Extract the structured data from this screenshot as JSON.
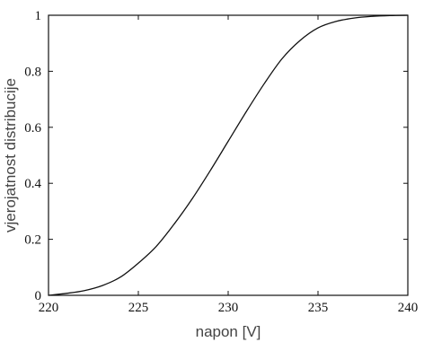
{
  "chart_data": {
    "type": "line",
    "title": "",
    "xlabel": "napon [V]",
    "ylabel": "vjerojatnost distribucije",
    "xlim": [
      220,
      240
    ],
    "ylim": [
      0,
      1
    ],
    "x_ticks": [
      220,
      225,
      230,
      235,
      240
    ],
    "x_tick_labels": [
      "220",
      "225",
      "230",
      "235",
      "240"
    ],
    "y_ticks": [
      0,
      0.2,
      0.4,
      0.6,
      0.8,
      1
    ],
    "y_tick_labels": [
      "0",
      "0.2",
      "0.4",
      "0.6",
      "0.8",
      "1"
    ],
    "grid": false,
    "legend": "none",
    "series": [
      {
        "x": [
          220,
          221,
          222,
          223,
          224,
          225,
          226,
          227,
          228,
          229,
          230,
          231,
          232,
          233,
          234,
          235,
          236,
          237,
          238,
          239,
          240
        ],
        "y": [
          0.0,
          0.007,
          0.017,
          0.035,
          0.065,
          0.115,
          0.175,
          0.255,
          0.345,
          0.445,
          0.55,
          0.655,
          0.755,
          0.845,
          0.91,
          0.955,
          0.978,
          0.99,
          0.996,
          0.999,
          1.0
        ],
        "color": "#111111"
      }
    ]
  },
  "colors": {
    "axis": "#111111",
    "line": "#111111",
    "xlabel": "#444444",
    "ylabel": "#444444"
  }
}
